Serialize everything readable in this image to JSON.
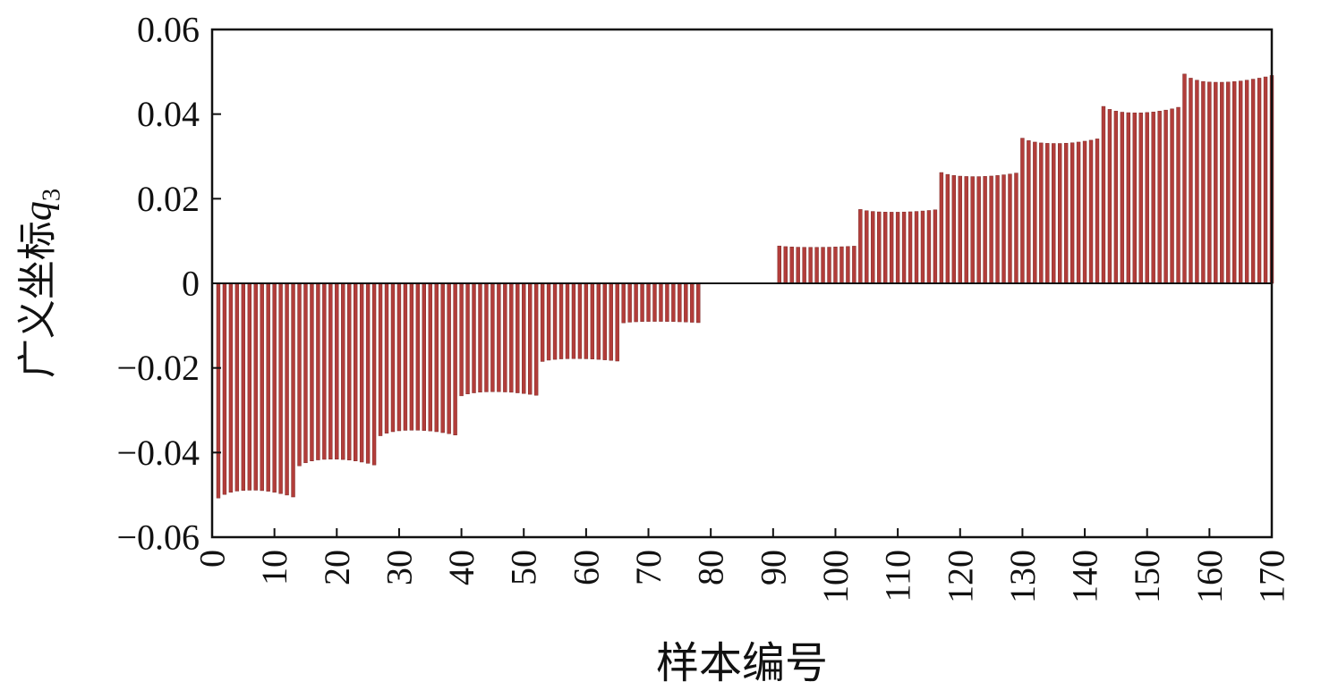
{
  "chart_data": {
    "type": "bar",
    "title": "",
    "xlabel": "样本编号",
    "ylabel": "广义坐标q3",
    "ylabel_prefix": "广义坐标",
    "ylabel_symbol": "q",
    "ylabel_subscript": "3",
    "xlim": [
      0,
      170
    ],
    "ylim": [
      -0.06,
      0.06
    ],
    "grid": false,
    "legend": "none",
    "bar_color": "#b23d3a",
    "bar_edge_color": "#7e2a28",
    "axis_color": "#111111",
    "xticks": [
      0,
      10,
      20,
      30,
      40,
      50,
      60,
      70,
      80,
      90,
      100,
      110,
      120,
      130,
      140,
      150,
      160,
      170
    ],
    "xtick_labels": [
      "0",
      "10",
      "20",
      "30",
      "40",
      "50",
      "60",
      "70",
      "80",
      "90",
      "100",
      "110",
      "120",
      "130",
      "140",
      "150",
      "160",
      "170"
    ],
    "yticks": [
      -0.06,
      -0.04,
      -0.02,
      0,
      0.02,
      0.04,
      0.06
    ],
    "ytick_labels": [
      "−0.06",
      "−0.04",
      "−0.02",
      "0",
      "0.02",
      "0.04",
      "0.06"
    ],
    "x_start_sample": 1,
    "values": [
      -0.05075,
      -0.0499,
      -0.0494,
      -0.0491,
      -0.04895,
      -0.0489,
      -0.0489,
      -0.049,
      -0.04915,
      -0.0494,
      -0.0497,
      -0.05005,
      -0.0505,
      -0.04314,
      -0.04242,
      -0.04199,
      -0.04174,
      -0.04161,
      -0.04157,
      -0.04157,
      -0.04165,
      -0.04178,
      -0.04199,
      -0.04225,
      -0.04254,
      -0.04293,
      -0.03603,
      -0.03543,
      -0.03507,
      -0.03486,
      -0.03475,
      -0.03472,
      -0.03472,
      -0.03479,
      -0.0349,
      -0.03507,
      -0.03529,
      -0.03554,
      -0.03586,
      -0.02659,
      -0.02615,
      -0.02589,
      -0.02573,
      -0.02565,
      -0.02562,
      -0.02562,
      -0.02568,
      -0.02575,
      -0.02589,
      -0.02604,
      -0.02623,
      -0.02646,
      -0.01847,
      -0.01816,
      -0.01798,
      -0.01787,
      -0.01782,
      -0.0178,
      -0.0178,
      -0.01784,
      -0.01789,
      -0.01798,
      -0.01809,
      -0.01822,
      -0.01838,
      -0.00934,
      -0.00918,
      -0.00909,
      -0.00903,
      -0.00901,
      -0.009,
      -0.009,
      -0.00902,
      -0.00904,
      -0.00909,
      -0.00914,
      -0.00921,
      -0.00929,
      0,
      0,
      0,
      0,
      0,
      0,
      0,
      0,
      0,
      0,
      0,
      0,
      0.00883,
      0.00868,
      0.0086,
      0.00854,
      0.00852,
      0.00851,
      0.00851,
      0.00853,
      0.00855,
      0.0086,
      0.00865,
      0.00871,
      0.00879,
      0.01746,
      0.01717,
      0.01699,
      0.01689,
      0.01684,
      0.01682,
      0.01682,
      0.01686,
      0.01691,
      0.01699,
      0.0171,
      0.01722,
      0.01737,
      0.02619,
      0.02575,
      0.02549,
      0.02534,
      0.02526,
      0.02523,
      0.02523,
      0.02528,
      0.02536,
      0.02549,
      0.02565,
      0.02583,
      0.02606,
      0.03431,
      0.03373,
      0.03339,
      0.03319,
      0.03309,
      0.03306,
      0.03306,
      0.03312,
      0.03322,
      0.03339,
      0.0336,
      0.03383,
      0.03414,
      0.04182,
      0.04112,
      0.04071,
      0.04046,
      0.04034,
      0.04029,
      0.04029,
      0.04038,
      0.0405,
      0.04071,
      0.04095,
      0.04124,
      0.04161,
      0.04947,
      0.0485,
      0.04802,
      0.04772,
      0.04758,
      0.04753,
      0.04753,
      0.04758,
      0.04768,
      0.04782,
      0.04802,
      0.04826,
      0.0485,
      0.04879,
      0.04913
    ]
  }
}
